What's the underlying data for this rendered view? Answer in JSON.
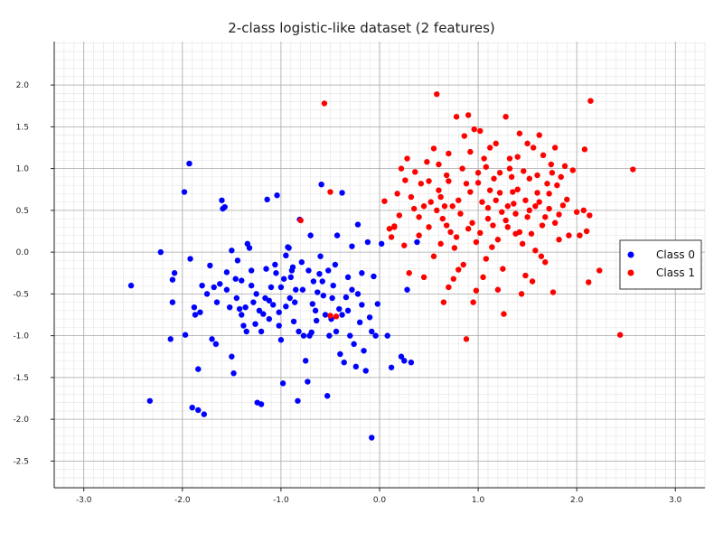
{
  "chart_data": {
    "type": "scatter",
    "title": "2-class logistic-like dataset (2 features)",
    "xlabel": "",
    "ylabel": "",
    "xlim": [
      -3.3,
      3.3
    ],
    "ylim": [
      -2.82,
      2.52
    ],
    "x_ticks": [
      -3.0,
      -2.0,
      -1.0,
      0.0,
      1.0,
      2.0,
      3.0
    ],
    "y_ticks": [
      -2.5,
      -2.0,
      -1.5,
      -1.0,
      -0.5,
      0.0,
      0.5,
      1.0,
      1.5,
      2.0
    ],
    "x_tick_labels": [
      "-3.0",
      "-2.0",
      "-1.0",
      "0.0",
      "1.0",
      "2.0",
      "3.0"
    ],
    "y_tick_labels": [
      "-2.5",
      "-2.0",
      "-1.5",
      "-1.0",
      "-0.5",
      "0.0",
      "0.5",
      "1.0",
      "1.5",
      "2.0"
    ],
    "grid": true,
    "minor_grid": true,
    "legend_position": "right",
    "series": [
      {
        "name": "Class 0",
        "color": "#0000ff",
        "points": [
          [
            -2.52,
            -0.4
          ],
          [
            -2.33,
            -1.78
          ],
          [
            -2.22,
            0.0
          ],
          [
            -2.12,
            -1.04
          ],
          [
            -2.1,
            -0.6
          ],
          [
            -2.1,
            -0.33
          ],
          [
            -2.08,
            -0.25
          ],
          [
            -1.98,
            0.72
          ],
          [
            -1.97,
            -0.99
          ],
          [
            -1.93,
            1.06
          ],
          [
            -1.92,
            -0.08
          ],
          [
            -1.9,
            -1.86
          ],
          [
            -1.88,
            -0.66
          ],
          [
            -1.87,
            -0.75
          ],
          [
            -1.84,
            -1.4
          ],
          [
            -1.82,
            -0.72
          ],
          [
            -1.78,
            -1.94
          ],
          [
            -1.84,
            -1.89
          ],
          [
            -1.72,
            -0.16
          ],
          [
            -1.7,
            -1.04
          ],
          [
            -1.68,
            -0.42
          ],
          [
            -1.66,
            -1.1
          ],
          [
            -1.62,
            -0.38
          ],
          [
            -1.6,
            0.62
          ],
          [
            -1.59,
            0.52
          ],
          [
            -1.57,
            0.54
          ],
          [
            -1.55,
            -0.24
          ],
          [
            -1.52,
            -0.66
          ],
          [
            -1.5,
            -1.25
          ],
          [
            -1.48,
            -1.45
          ],
          [
            -1.46,
            -0.32
          ],
          [
            -1.44,
            -0.1
          ],
          [
            -1.42,
            -0.68
          ],
          [
            -1.4,
            -0.34
          ],
          [
            -1.38,
            -0.88
          ],
          [
            -1.36,
            -0.66
          ],
          [
            -1.34,
            0.1
          ],
          [
            -1.32,
            0.05
          ],
          [
            -1.3,
            -0.22
          ],
          [
            -1.28,
            -0.6
          ],
          [
            -1.26,
            -0.86
          ],
          [
            -1.24,
            -1.8
          ],
          [
            -1.22,
            -0.7
          ],
          [
            -1.2,
            -1.82
          ],
          [
            -1.18,
            -0.74
          ],
          [
            -1.16,
            -0.55
          ],
          [
            -1.14,
            0.63
          ],
          [
            -1.12,
            -0.8
          ],
          [
            -1.1,
            -0.42
          ],
          [
            -1.08,
            -0.63
          ],
          [
            -1.06,
            -0.15
          ],
          [
            -1.04,
            0.68
          ],
          [
            -1.02,
            -0.88
          ],
          [
            -1.0,
            -1.05
          ],
          [
            -0.98,
            -1.57
          ],
          [
            -0.97,
            -0.32
          ],
          [
            -0.95,
            -0.04
          ],
          [
            -0.93,
            0.06
          ],
          [
            -0.91,
            -0.55
          ],
          [
            -0.89,
            -0.22
          ],
          [
            -0.87,
            -0.83
          ],
          [
            -0.85,
            -0.45
          ],
          [
            -0.83,
            -1.78
          ],
          [
            -0.81,
            0.39
          ],
          [
            -0.79,
            -0.12
          ],
          [
            -0.77,
            -1.0
          ],
          [
            -0.75,
            -1.3
          ],
          [
            -0.73,
            -1.55
          ],
          [
            -0.71,
            -1.0
          ],
          [
            -0.69,
            -0.96
          ],
          [
            -0.67,
            -0.35
          ],
          [
            -0.65,
            -0.7
          ],
          [
            -0.63,
            -0.48
          ],
          [
            -0.61,
            -0.26
          ],
          [
            -0.59,
            0.81
          ],
          [
            -0.57,
            -0.52
          ],
          [
            -0.55,
            -0.75
          ],
          [
            -0.53,
            -1.72
          ],
          [
            -0.51,
            -1.0
          ],
          [
            -0.49,
            -0.8
          ],
          [
            -0.47,
            -0.4
          ],
          [
            -0.45,
            -0.15
          ],
          [
            -0.43,
            0.2
          ],
          [
            -0.41,
            -0.68
          ],
          [
            -0.4,
            -1.22
          ],
          [
            -0.38,
            0.71
          ],
          [
            -0.36,
            -1.32
          ],
          [
            -0.34,
            -0.54
          ],
          [
            -0.32,
            -0.3
          ],
          [
            -0.3,
            -1.0
          ],
          [
            -0.28,
            0.07
          ],
          [
            -0.26,
            -1.1
          ],
          [
            -0.24,
            -1.37
          ],
          [
            -0.22,
            0.33
          ],
          [
            -0.2,
            -0.84
          ],
          [
            -0.18,
            -0.63
          ],
          [
            -0.16,
            -1.18
          ],
          [
            -0.14,
            -1.42
          ],
          [
            -0.12,
            0.12
          ],
          [
            -0.1,
            -0.78
          ],
          [
            -0.08,
            -2.22
          ],
          [
            -0.06,
            -0.29
          ],
          [
            -0.04,
            -1.0
          ],
          [
            -0.02,
            -0.62
          ],
          [
            -0.92,
            0.05
          ],
          [
            -0.7,
            0.2
          ],
          [
            -1.05,
            -0.25
          ],
          [
            -0.82,
            -0.95
          ],
          [
            -1.15,
            -0.2
          ],
          [
            -0.6,
            -0.05
          ],
          [
            -1.25,
            -0.5
          ],
          [
            -0.95,
            -0.65
          ],
          [
            -1.35,
            -0.95
          ],
          [
            -0.44,
            -0.95
          ],
          [
            -1.5,
            0.02
          ],
          [
            -1.2,
            -0.95
          ],
          [
            -0.86,
            -0.6
          ],
          [
            -0.64,
            -0.82
          ],
          [
            -1.0,
            -0.42
          ],
          [
            -0.9,
            -0.3
          ],
          [
            -0.78,
            -0.45
          ],
          [
            -0.68,
            -0.62
          ],
          [
            -0.58,
            -0.35
          ],
          [
            -0.48,
            -0.55
          ],
          [
            -0.38,
            -0.75
          ],
          [
            -0.28,
            -0.45
          ],
          [
            -0.18,
            -0.25
          ],
          [
            -0.08,
            -0.95
          ],
          [
            0.02,
            0.1
          ],
          [
            0.08,
            -1.0
          ],
          [
            0.12,
            -1.38
          ],
          [
            0.22,
            -1.25
          ],
          [
            0.25,
            -1.3
          ],
          [
            0.32,
            -1.32
          ],
          [
            0.38,
            0.12
          ],
          [
            0.28,
            -0.45
          ],
          [
            -1.45,
            -0.55
          ],
          [
            -1.55,
            -0.45
          ],
          [
            -1.65,
            -0.6
          ],
          [
            -1.75,
            -0.5
          ],
          [
            -1.8,
            -0.4
          ],
          [
            -1.12,
            -0.58
          ],
          [
            -1.02,
            -0.72
          ],
          [
            -0.88,
            -0.18
          ],
          [
            -0.72,
            -0.22
          ],
          [
            -0.52,
            -0.22
          ],
          [
            -0.32,
            -0.7
          ],
          [
            -0.22,
            -0.5
          ],
          [
            -1.3,
            -0.4
          ],
          [
            -1.4,
            -0.75
          ]
        ]
      },
      {
        "name": "Class 1",
        "color": "#ff0000",
        "points": [
          [
            -0.56,
            1.78
          ],
          [
            -0.8,
            0.38
          ],
          [
            -0.5,
            0.72
          ],
          [
            -0.44,
            -0.77
          ],
          [
            -0.5,
            -0.76
          ],
          [
            0.1,
            0.28
          ],
          [
            0.12,
            0.18
          ],
          [
            0.15,
            0.31
          ],
          [
            0.18,
            0.7
          ],
          [
            0.22,
            1.0
          ],
          [
            0.26,
            0.86
          ],
          [
            0.28,
            1.12
          ],
          [
            0.32,
            0.66
          ],
          [
            0.36,
            0.96
          ],
          [
            0.4,
            0.42
          ],
          [
            0.42,
            0.82
          ],
          [
            0.45,
            0.55
          ],
          [
            0.48,
            1.08
          ],
          [
            0.5,
            0.3
          ],
          [
            0.52,
            0.6
          ],
          [
            0.55,
            1.24
          ],
          [
            0.58,
            1.89
          ],
          [
            0.6,
            0.74
          ],
          [
            0.62,
            0.1
          ],
          [
            0.64,
            0.4
          ],
          [
            0.66,
            0.55
          ],
          [
            0.68,
            0.92
          ],
          [
            0.7,
            1.18
          ],
          [
            0.72,
            0.24
          ],
          [
            0.74,
            0.55
          ],
          [
            0.76,
            0.05
          ],
          [
            0.78,
            1.62
          ],
          [
            0.8,
            -0.21
          ],
          [
            0.82,
            0.46
          ],
          [
            0.84,
            1.0
          ],
          [
            0.86,
            1.39
          ],
          [
            0.88,
            -1.04
          ],
          [
            0.9,
            1.64
          ],
          [
            0.92,
            0.72
          ],
          [
            0.94,
            0.35
          ],
          [
            0.96,
            1.47
          ],
          [
            0.98,
            -0.46
          ],
          [
            1.0,
            0.83
          ],
          [
            1.02,
            0.23
          ],
          [
            1.04,
            0.6
          ],
          [
            1.06,
            1.12
          ],
          [
            1.08,
            -0.08
          ],
          [
            1.1,
            0.53
          ],
          [
            1.12,
            1.25
          ],
          [
            1.14,
            0.06
          ],
          [
            1.16,
            0.88
          ],
          [
            1.18,
            1.3
          ],
          [
            1.2,
            -0.45
          ],
          [
            1.22,
            0.71
          ],
          [
            1.24,
            0.48
          ],
          [
            1.26,
            -0.74
          ],
          [
            1.28,
            1.62
          ],
          [
            1.3,
            0.3
          ],
          [
            1.32,
            1.0
          ],
          [
            1.34,
            0.9
          ],
          [
            1.36,
            0.58
          ],
          [
            1.38,
            0.46
          ],
          [
            1.4,
            1.14
          ],
          [
            1.42,
            0.24
          ],
          [
            1.44,
            -0.5
          ],
          [
            1.46,
            0.97
          ],
          [
            1.48,
            0.62
          ],
          [
            1.5,
            0.42
          ],
          [
            1.52,
            0.88
          ],
          [
            1.54,
            0.22
          ],
          [
            1.56,
            1.25
          ],
          [
            1.58,
            0.55
          ],
          [
            1.6,
            0.71
          ],
          [
            1.62,
            1.4
          ],
          [
            1.64,
            -0.05
          ],
          [
            1.66,
            1.16
          ],
          [
            1.68,
            0.42
          ],
          [
            1.7,
            0.82
          ],
          [
            1.72,
            0.52
          ],
          [
            1.74,
            1.05
          ],
          [
            1.76,
            -0.48
          ],
          [
            1.78,
            1.25
          ],
          [
            1.8,
            0.8
          ],
          [
            1.82,
            0.15
          ],
          [
            1.84,
            0.9
          ],
          [
            1.86,
            0.56
          ],
          [
            1.88,
            1.03
          ],
          [
            1.9,
            0.63
          ],
          [
            1.92,
            0.2
          ],
          [
            1.96,
            0.98
          ],
          [
            2.0,
            0.48
          ],
          [
            2.03,
            0.2
          ],
          [
            2.07,
            0.5
          ],
          [
            2.08,
            1.23
          ],
          [
            2.1,
            0.25
          ],
          [
            2.12,
            -0.36
          ],
          [
            2.13,
            0.44
          ],
          [
            2.14,
            1.81
          ],
          [
            2.23,
            -0.22
          ],
          [
            2.44,
            -0.99
          ],
          [
            2.57,
            0.99
          ],
          [
            0.05,
            0.61
          ],
          [
            0.15,
            0.3
          ],
          [
            0.3,
            -0.25
          ],
          [
            0.45,
            -0.3
          ],
          [
            0.55,
            -0.05
          ],
          [
            0.65,
            -0.6
          ],
          [
            0.7,
            -0.42
          ],
          [
            0.75,
            -0.32
          ],
          [
            0.85,
            -0.15
          ],
          [
            0.95,
            -0.6
          ],
          [
            1.05,
            -0.3
          ],
          [
            1.15,
            0.32
          ],
          [
            1.25,
            -0.2
          ],
          [
            1.35,
            0.72
          ],
          [
            1.45,
            0.1
          ],
          [
            1.55,
            -0.35
          ],
          [
            1.65,
            0.32
          ],
          [
            1.75,
            0.95
          ],
          [
            0.6,
            1.05
          ],
          [
            0.7,
            0.85
          ],
          [
            0.8,
            0.62
          ],
          [
            0.9,
            0.28
          ],
          [
            1.0,
            0.95
          ],
          [
            1.1,
            0.4
          ],
          [
            1.2,
            0.15
          ],
          [
            1.3,
            0.55
          ],
          [
            1.4,
            0.75
          ],
          [
            1.5,
            1.3
          ],
          [
            1.6,
            0.92
          ],
          [
            0.5,
            0.85
          ],
          [
            0.4,
            0.2
          ],
          [
            0.35,
            0.52
          ],
          [
            0.25,
            0.08
          ],
          [
            0.2,
            0.44
          ],
          [
            0.58,
            0.5
          ],
          [
            0.68,
            0.32
          ],
          [
            0.88,
            0.82
          ],
          [
            0.98,
            0.12
          ],
          [
            1.08,
            1.02
          ],
          [
            1.18,
            0.62
          ],
          [
            1.28,
            0.38
          ],
          [
            1.38,
            0.22
          ],
          [
            1.48,
            -0.28
          ],
          [
            1.58,
            0.02
          ],
          [
            1.68,
            -0.12
          ],
          [
            1.78,
            0.35
          ],
          [
            0.78,
            0.18
          ],
          [
            0.62,
            0.66
          ],
          [
            0.92,
            1.2
          ],
          [
            1.02,
            1.45
          ],
          [
            1.12,
            0.74
          ],
          [
            1.22,
            0.95
          ],
          [
            1.32,
            1.12
          ],
          [
            1.42,
            1.42
          ],
          [
            1.52,
            0.5
          ],
          [
            1.62,
            0.6
          ],
          [
            1.72,
            0.7
          ],
          [
            1.82,
            0.45
          ]
        ]
      }
    ]
  }
}
